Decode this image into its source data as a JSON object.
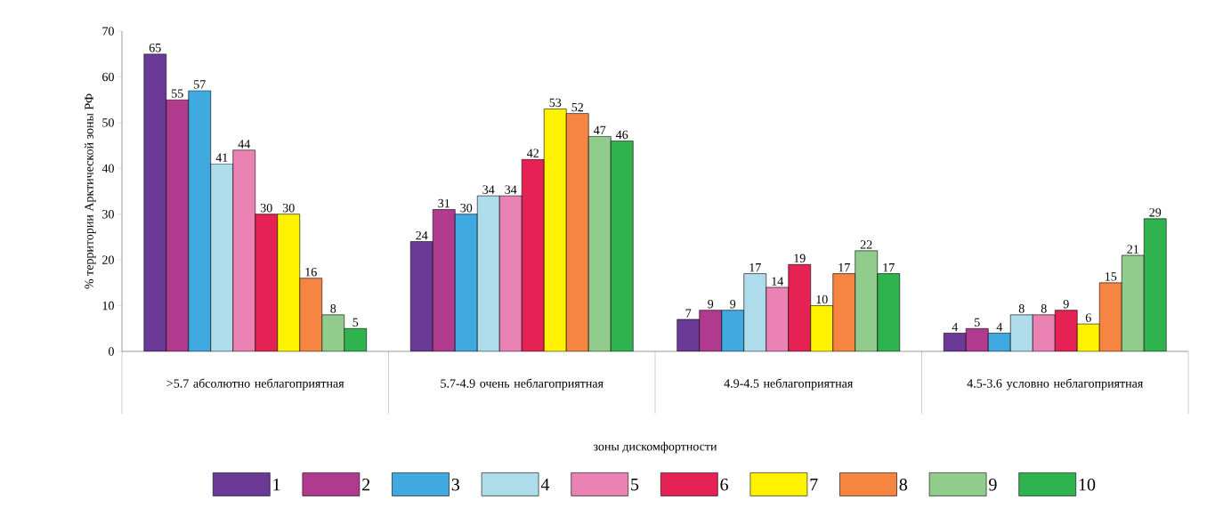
{
  "chart_data": {
    "type": "bar",
    "xlabel": "зоны дискомфортности",
    "ylabel": "% территории Арктической зоны РФ",
    "categories": [
      ">5.7 абсолютно неблагоприятная",
      "5.7-4.9 очень неблагоприятная",
      "4.9-4.5 неблагоприятная",
      "4.5-3.6 условно неблагоприятная"
    ],
    "series": [
      {
        "name": "1",
        "color": "#6b3a96",
        "values": [
          65,
          24,
          7,
          4
        ]
      },
      {
        "name": "2",
        "color": "#b03a8e",
        "values": [
          55,
          31,
          9,
          5
        ]
      },
      {
        "name": "3",
        "color": "#3fa9e0",
        "values": [
          57,
          30,
          9,
          4
        ]
      },
      {
        "name": "4",
        "color": "#aedcea",
        "values": [
          41,
          34,
          17,
          8
        ]
      },
      {
        "name": "5",
        "color": "#eb82b4",
        "values": [
          44,
          34,
          14,
          8
        ]
      },
      {
        "name": "6",
        "color": "#e52253",
        "values": [
          30,
          42,
          19,
          9
        ]
      },
      {
        "name": "7",
        "color": "#fff200",
        "values": [
          30,
          53,
          10,
          6
        ]
      },
      {
        "name": "8",
        "color": "#f58540",
        "values": [
          16,
          52,
          17,
          15
        ]
      },
      {
        "name": "9",
        "color": "#92cc8c",
        "values": [
          8,
          47,
          22,
          21
        ]
      },
      {
        "name": "10",
        "color": "#2fb34e",
        "values": [
          5,
          46,
          17,
          29
        ]
      }
    ],
    "ylim": [
      0,
      70
    ],
    "yticks": [
      0,
      10,
      20,
      30,
      40,
      50,
      60,
      70
    ],
    "data_labels": true,
    "legend": "bottom"
  }
}
